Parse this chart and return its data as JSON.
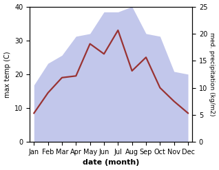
{
  "months": [
    "Jan",
    "Feb",
    "Mar",
    "Apr",
    "May",
    "Jun",
    "Jul",
    "Aug",
    "Sep",
    "Oct",
    "Nov",
    "Dec"
  ],
  "temp": [
    8.5,
    14.5,
    19.0,
    19.5,
    29.0,
    26.0,
    33.0,
    21.0,
    25.0,
    16.0,
    12.0,
    8.5
  ],
  "precip": [
    10.5,
    14.5,
    16.0,
    19.5,
    20.0,
    24.0,
    24.0,
    25.0,
    20.0,
    19.5,
    13.0,
    12.5
  ],
  "temp_color": "#993333",
  "precip_fill_color": "#b8bde8",
  "ylabel_left": "max temp (C)",
  "ylabel_right": "med. precipitation (kg/m2)",
  "xlabel": "date (month)",
  "ylim_left": [
    0,
    40
  ],
  "ylim_right": [
    0,
    25
  ],
  "background_color": "#ffffff",
  "label_fontsize": 7,
  "tick_fontsize": 7
}
